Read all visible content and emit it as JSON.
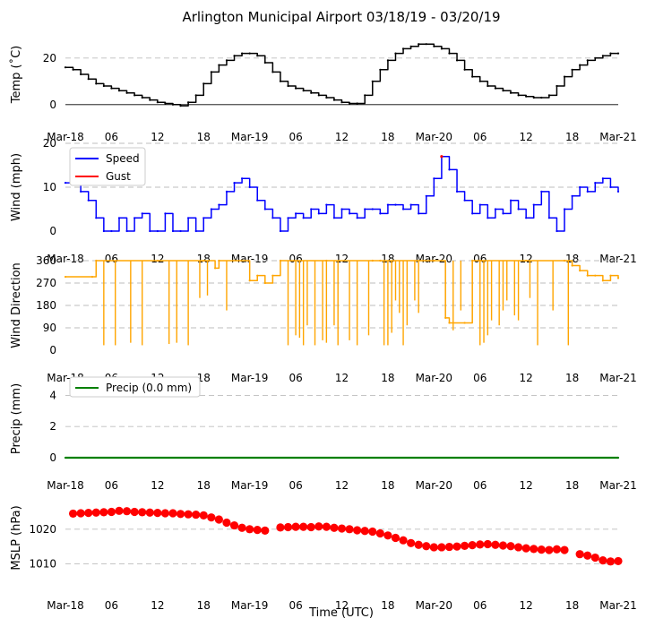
{
  "chart_data": {
    "type": "line",
    "title": "Arlington Municipal Airport 03/18/19 - 03/20/19",
    "xlabel": "Time (UTC)",
    "x_range_hours": [
      0,
      72
    ],
    "x_ticks": [
      {
        "h": 0,
        "label": "Mar-18"
      },
      {
        "h": 6,
        "label": "06"
      },
      {
        "h": 12,
        "label": "12"
      },
      {
        "h": 18,
        "label": "18"
      },
      {
        "h": 24,
        "label": "Mar-19"
      },
      {
        "h": 30,
        "label": "06"
      },
      {
        "h": 36,
        "label": "12"
      },
      {
        "h": 42,
        "label": "18"
      },
      {
        "h": 48,
        "label": "Mar-20"
      },
      {
        "h": 54,
        "label": "06"
      },
      {
        "h": 60,
        "label": "12"
      },
      {
        "h": 66,
        "label": "18"
      },
      {
        "h": 72,
        "label": "Mar-21"
      }
    ],
    "panels": [
      {
        "key": "temp",
        "ylabel": "Temp ($^\\circ$C)",
        "ylabel_display": "Temp (˚C)",
        "ylim": [
          -2,
          28
        ],
        "yticks": [
          0,
          20
        ],
        "grid_y": [
          20
        ],
        "zero_line": true,
        "series": [
          {
            "name": "Temperature",
            "color": "#000000",
            "style": "step",
            "hours": [
              0,
              1,
              2,
              3,
              4,
              5,
              6,
              7,
              8,
              9,
              10,
              11,
              12,
              13,
              14,
              15,
              16,
              17,
              18,
              19,
              20,
              21,
              22,
              23,
              24,
              25,
              26,
              27,
              28,
              29,
              30,
              31,
              32,
              33,
              34,
              35,
              36,
              37,
              38,
              39,
              40,
              41,
              42,
              43,
              44,
              45,
              46,
              47,
              48,
              49,
              50,
              51,
              52,
              53,
              54,
              55,
              56,
              57,
              58,
              59,
              60,
              61,
              62,
              63,
              64,
              65,
              66,
              67,
              68,
              69,
              70,
              71,
              72
            ],
            "values": [
              16,
              15,
              13,
              11,
              9,
              8,
              7,
              6,
              5,
              4,
              3,
              2,
              1,
              0.5,
              0,
              -0.5,
              1,
              4,
              9,
              14,
              17,
              19,
              21,
              22,
              22,
              21,
              18,
              14,
              10,
              8,
              7,
              6,
              5,
              4,
              3,
              2,
              1,
              0.5,
              0.5,
              4,
              10,
              15,
              19,
              22,
              24,
              25,
              26,
              26,
              25,
              24,
              22,
              19,
              15,
              12,
              10,
              8,
              7,
              6,
              5,
              4,
              3.5,
              3,
              3,
              4,
              8,
              12,
              15,
              17,
              19,
              20,
              21,
              22,
              22
            ]
          }
        ]
      },
      {
        "key": "wind",
        "ylabel": "Wind (mph)",
        "ylim": [
          0,
          20
        ],
        "yticks": [
          0,
          10,
          20
        ],
        "grid_y": [
          10,
          20
        ],
        "legend": [
          {
            "label": "Speed",
            "color": "#0000ff"
          },
          {
            "label": "Gust",
            "color": "#ff0000"
          }
        ],
        "series": [
          {
            "name": "Speed",
            "color": "#0000ff",
            "style": "step",
            "hours": [
              0,
              1,
              2,
              3,
              4,
              5,
              6,
              7,
              8,
              9,
              10,
              11,
              12,
              13,
              14,
              15,
              16,
              17,
              18,
              19,
              20,
              21,
              22,
              23,
              24,
              25,
              26,
              27,
              28,
              29,
              30,
              31,
              32,
              33,
              34,
              35,
              36,
              37,
              38,
              39,
              40,
              41,
              42,
              43,
              44,
              45,
              46,
              47,
              48,
              49,
              50,
              51,
              52,
              53,
              54,
              55,
              56,
              57,
              58,
              59,
              60,
              61,
              62,
              63,
              64,
              65,
              66,
              67,
              68,
              69,
              70,
              71,
              72
            ],
            "values": [
              11,
              12,
              9,
              7,
              3,
              0,
              0,
              3,
              0,
              3,
              4,
              0,
              0,
              4,
              0,
              0,
              3,
              0,
              3,
              5,
              6,
              9,
              11,
              12,
              10,
              7,
              5,
              3,
              0,
              3,
              4,
              3,
              5,
              4,
              6,
              3,
              5,
              4,
              3,
              5,
              5,
              4,
              6,
              6,
              5,
              6,
              4,
              8,
              12,
              17,
              14,
              9,
              7,
              4,
              6,
              3,
              5,
              4,
              7,
              5,
              3,
              6,
              9,
              3,
              0,
              5,
              8,
              10,
              9,
              11,
              12,
              10,
              9
            ]
          },
          {
            "name": "Gust",
            "color": "#ff0000",
            "style": "markers",
            "hours": [
              49.0
            ],
            "values": [
              17
            ]
          }
        ]
      },
      {
        "key": "wdir",
        "ylabel": "Wind Direction",
        "ylim": [
          0,
          360
        ],
        "yticks": [
          0,
          90,
          180,
          270,
          360
        ],
        "grid_y": [
          90,
          180,
          270,
          360
        ],
        "series": [
          {
            "name": "Wind Direction",
            "color": "#ffa500",
            "style": "step",
            "hours": [
              0,
              3.5,
              4,
              12,
              18,
              19.5,
              20,
              24,
              25,
              26,
              27,
              28,
              34,
              40,
              41,
              48,
              49.5,
              50,
              52,
              53,
              54,
              60,
              65,
              66,
              67,
              68,
              69,
              70,
              71,
              72
            ],
            "values": [
              295,
              295,
              360,
              360,
              360,
              330,
              360,
              280,
              300,
              270,
              300,
              360,
              360,
              360,
              360,
              360,
              130,
              110,
              110,
              360,
              360,
              360,
              360,
              340,
              320,
              300,
              300,
              280,
              300,
              290
            ]
          },
          {
            "name": "Wind Direction dips",
            "color": "#ffa500",
            "style": "spikes",
            "hours": [
              5,
              6.5,
              8.5,
              10,
              13.5,
              14.5,
              16,
              17.5,
              18.5,
              21,
              29,
              30,
              30.5,
              31,
              31.5,
              32.5,
              33.5,
              34,
              35,
              35.5,
              37,
              38,
              39.5,
              41.5,
              42,
              42.5,
              43,
              43.5,
              44,
              44.5,
              45.5,
              46,
              50.5,
              51.5,
              54,
              54.5,
              55,
              55.5,
              56.5,
              57,
              57.5,
              58.5,
              59,
              60.5,
              61.5,
              63.5,
              65.5
            ],
            "values": [
              20,
              20,
              30,
              20,
              25,
              30,
              20,
              210,
              220,
              160,
              20,
              60,
              50,
              20,
              100,
              20,
              40,
              30,
              100,
              20,
              40,
              20,
              60,
              20,
              20,
              70,
              200,
              150,
              20,
              100,
              200,
              150,
              80,
              160,
              20,
              30,
              60,
              120,
              100,
              160,
              200,
              140,
              120,
              210,
              20,
              160,
              20
            ]
          }
        ]
      },
      {
        "key": "precip",
        "ylabel": "Precip (mm)",
        "ylim": [
          0,
          5
        ],
        "yticks": [
          0,
          2,
          4
        ],
        "grid_y": [
          2,
          4
        ],
        "legend": [
          {
            "label": "Precip (0.0 mm)",
            "color": "#008000"
          }
        ],
        "series": [
          {
            "name": "Precip (0.0 mm)",
            "color": "#008000",
            "style": "line",
            "hours": [
              0,
              72
            ],
            "values": [
              0,
              0
            ]
          }
        ]
      },
      {
        "key": "mslp",
        "ylabel": "MSLP (hPa)",
        "ylim": [
          1006,
          1029
        ],
        "yticks": [
          1010,
          1020
        ],
        "grid_y": [
          1010,
          1020
        ],
        "series": [
          {
            "name": "MSLP",
            "color": "#ff0000",
            "style": "markers",
            "hours": [
              1,
              2,
              3,
              4,
              5,
              6,
              7,
              8,
              9,
              10,
              11,
              12,
              13,
              14,
              15,
              16,
              17,
              18,
              19,
              20,
              21,
              22,
              23,
              24,
              25,
              26,
              28,
              29,
              30,
              31,
              32,
              33,
              34,
              35,
              36,
              37,
              38,
              39,
              40,
              41,
              42,
              43,
              44,
              45,
              46,
              47,
              48,
              49,
              50,
              51,
              52,
              53,
              54,
              55,
              56,
              57,
              58,
              59,
              60,
              61,
              62,
              63,
              64,
              65,
              67,
              68,
              69,
              70,
              71,
              72
            ],
            "values": [
              1024.5,
              1024.6,
              1024.7,
              1024.8,
              1024.9,
              1025.0,
              1025.3,
              1025.2,
              1025.0,
              1024.9,
              1024.8,
              1024.7,
              1024.6,
              1024.6,
              1024.4,
              1024.3,
              1024.2,
              1024.0,
              1023.4,
              1022.8,
              1021.9,
              1021.1,
              1020.4,
              1020.0,
              1019.8,
              1019.6,
              1020.5,
              1020.6,
              1020.7,
              1020.7,
              1020.6,
              1020.8,
              1020.7,
              1020.4,
              1020.2,
              1020.0,
              1019.7,
              1019.5,
              1019.3,
              1018.8,
              1018.2,
              1017.5,
              1016.8,
              1016.0,
              1015.5,
              1015.1,
              1014.8,
              1014.8,
              1014.9,
              1015.0,
              1015.2,
              1015.4,
              1015.6,
              1015.7,
              1015.5,
              1015.3,
              1015.1,
              1014.8,
              1014.5,
              1014.3,
              1014.1,
              1014.0,
              1014.2,
              1014.0,
              1012.8,
              1012.4,
              1011.8,
              1011.0,
              1010.7,
              1010.8
            ]
          }
        ]
      }
    ]
  }
}
